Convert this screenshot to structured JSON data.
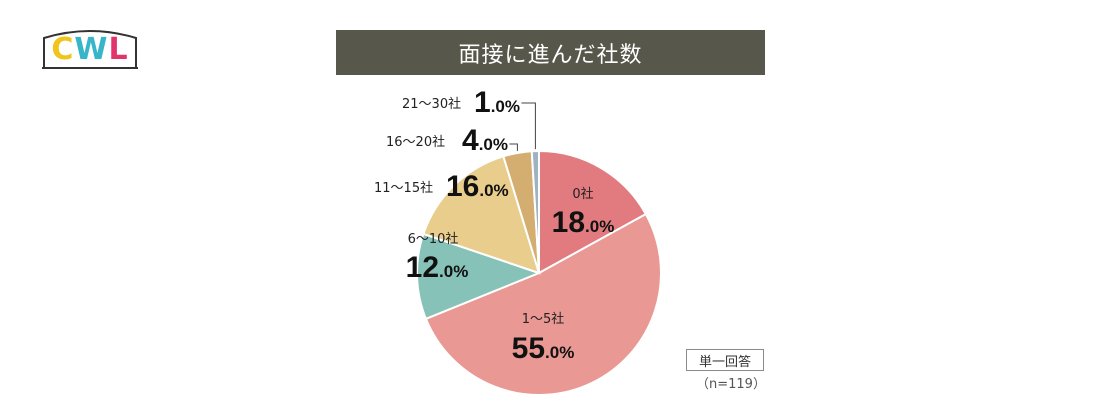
{
  "logo": {
    "c": "C",
    "w": "W",
    "l": "L"
  },
  "title": "面接に進んだ社数",
  "note": {
    "type": "単一回答",
    "sample": "（n=119）"
  },
  "chart_data": {
    "type": "pie",
    "title": "面接に進んだ社数",
    "unit": "%",
    "slices": [
      {
        "label": "0社",
        "value": 18.0,
        "int": "18",
        "dec": ".0",
        "color": "#e17b7f"
      },
      {
        "label": "1～5社",
        "value": 55.0,
        "int": "55",
        "dec": ".0",
        "color": "#e99893"
      },
      {
        "label": "6～10社",
        "value": 12.0,
        "int": "12",
        "dec": ".0",
        "color": "#86c2b7"
      },
      {
        "label": "11～15社",
        "value": 16.0,
        "int": "16",
        "dec": ".0",
        "color": "#e8cd8c"
      },
      {
        "label": "16～20社",
        "value": 4.0,
        "int": "4",
        "dec": ".0",
        "color": "#d4ad70"
      },
      {
        "label": "21～30社",
        "value": 1.0,
        "int": "1",
        "dec": ".0",
        "color": "#9fb2c2"
      }
    ]
  }
}
